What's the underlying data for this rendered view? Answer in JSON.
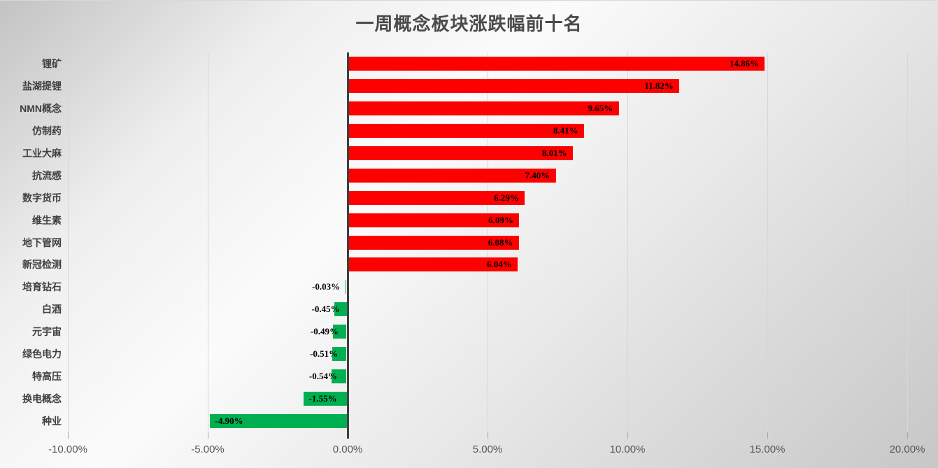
{
  "title": "一周概念板块涨跌幅前十名",
  "chart_data": {
    "type": "bar",
    "orientation": "horizontal",
    "title": "一周概念板块涨跌幅前十名",
    "categories": [
      "锂矿",
      "盐湖提锂",
      "NMN概念",
      "仿制药",
      "工业大麻",
      "抗流感",
      "数字货币",
      "维生素",
      "地下管网",
      "新冠检测",
      "培育钻石",
      "白酒",
      "元宇宙",
      "绿色电力",
      "特高压",
      "换电概念",
      "种业"
    ],
    "values": [
      14.86,
      11.82,
      9.65,
      8.41,
      8.01,
      7.4,
      6.29,
      6.09,
      6.08,
      6.04,
      -0.03,
      -0.45,
      -0.49,
      -0.51,
      -0.54,
      -1.55,
      -4.9
    ],
    "value_labels": [
      "14.86%",
      "11.82%",
      "9.65%",
      "8.41%",
      "8.01%",
      "7.40%",
      "6.29%",
      "6.09%",
      "6.08%",
      "6.04%",
      "-0.03%",
      "-0.45%",
      "-0.49%",
      "-0.51%",
      "-0.54%",
      "-1.55%",
      "-4.90%"
    ],
    "xlabel": "",
    "ylabel": "",
    "xlim": [
      -10,
      20
    ],
    "x_ticks": [
      -10,
      -5,
      0,
      5,
      10,
      15,
      20
    ],
    "x_tick_labels": [
      "-10.00%",
      "-5.00%",
      "0.00%",
      "5.00%",
      "10.00%",
      "15.00%",
      "20.00%"
    ],
    "grid": true,
    "legend": false,
    "data_label_position": "inside-end",
    "colors": {
      "positive": "#ff0000",
      "negative": "#00b050",
      "axis_line": "#3f3f3f",
      "gridline": "#d7d7d7",
      "title_text": "#4a4a4a",
      "category_text": "#404040",
      "tick_text": "#565656",
      "value_text": "#000000"
    }
  }
}
